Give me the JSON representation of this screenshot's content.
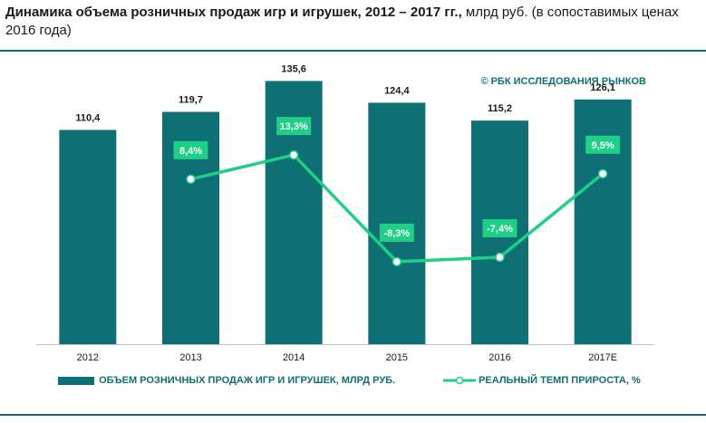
{
  "title": {
    "bold": "Динамика объема розничных продаж игр и игрушек, 2012 – 2017 гг.,",
    "normal": " млрд руб. (в сопоставимых ценах 2016 года)"
  },
  "source": "© РБК ИССЛЕДОВАНИЯ РЫНКОВ",
  "colors": {
    "bar": "#0e6f74",
    "line": "#1fcf86",
    "label_bg": "#1fcf86"
  },
  "chart_data": {
    "type": "bar",
    "categories": [
      "2012",
      "2013",
      "2014",
      "2015",
      "2016",
      "2017E"
    ],
    "series": [
      {
        "name": "ОБЪЕМ РОЗНИЧНЫХ ПРОДАЖ ИГР И ИГРУШЕК, МЛРД РУБ.",
        "type": "bar",
        "values": [
          110.4,
          119.7,
          135.6,
          124.4,
          115.2,
          126.1
        ],
        "labels": [
          "110,4",
          "119,7",
          "135,6",
          "124,4",
          "115,2",
          "126,1"
        ]
      },
      {
        "name": "РЕАЛЬНЫЙ ТЕМП ПРИРОСТА, %",
        "type": "line",
        "x": [
          "2013",
          "2014",
          "2015",
          "2016",
          "2017E"
        ],
        "values": [
          8.4,
          13.3,
          -8.3,
          -7.4,
          9.5
        ],
        "labels": [
          "8,4%",
          "13,3%",
          "-8,3%",
          "-7,4%",
          "9,5%"
        ]
      }
    ],
    "ylim": [
      0,
      140
    ],
    "y2lim": [
      -25,
      30
    ]
  }
}
